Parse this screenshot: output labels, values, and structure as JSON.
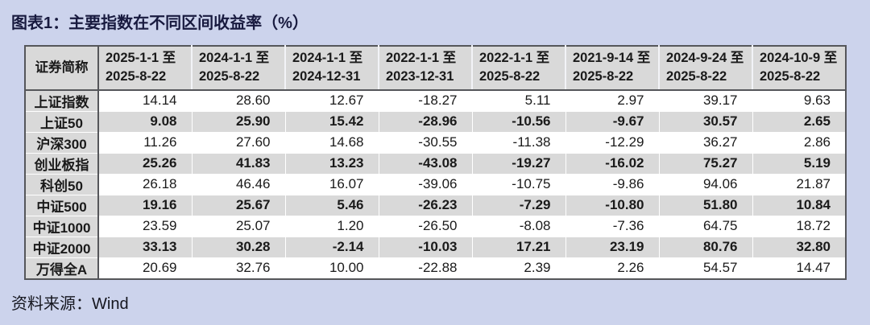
{
  "figure": {
    "title": "图表1：主要指数在不同区间收益率（%）",
    "source": "资料来源：Wind"
  },
  "colors": {
    "page_background": "#ccd3ec",
    "table_header_fill": "#d9d9d9",
    "row_even_fill": "#ffffff",
    "row_odd_fill": "#d9d9d9",
    "table_border": "#55565a",
    "title_color": "#181a3f",
    "text_color": "#1a1a1a"
  },
  "chart_data": {
    "type": "table",
    "title": "图表1：主要指数在不同区间收益率（%）",
    "unit": "%",
    "source": "资料来源：Wind",
    "corner_header": "证券简称",
    "column_headers": [
      "2025-1-1 至\n2025-8-22",
      "2024-1-1 至\n2025-8-22",
      "2024-1-1 至\n2024-12-31",
      "2022-1-1 至\n2023-12-31",
      "2022-1-1 至\n2025-8-22",
      "2021-9-14 至\n2025-8-22",
      "2024-9-24 至\n2025-8-22",
      "2024-10-9 至\n2025-8-22"
    ],
    "rows": [
      {
        "name": "上证指数",
        "values": [
          "14.14",
          "28.60",
          "12.67",
          "-18.27",
          "5.11",
          "2.97",
          "39.17",
          "9.63"
        ]
      },
      {
        "name": "上证50",
        "values": [
          "9.08",
          "25.90",
          "15.42",
          "-28.96",
          "-10.56",
          "-9.67",
          "30.57",
          "2.65"
        ]
      },
      {
        "name": "沪深300",
        "values": [
          "11.26",
          "27.60",
          "14.68",
          "-30.55",
          "-11.38",
          "-12.29",
          "36.27",
          "2.86"
        ]
      },
      {
        "name": "创业板指",
        "values": [
          "25.26",
          "41.83",
          "13.23",
          "-43.08",
          "-19.27",
          "-16.02",
          "75.27",
          "5.19"
        ]
      },
      {
        "name": "科创50",
        "values": [
          "26.18",
          "46.46",
          "16.07",
          "-39.06",
          "-10.75",
          "-9.86",
          "94.06",
          "21.87"
        ]
      },
      {
        "name": "中证500",
        "values": [
          "19.16",
          "25.67",
          "5.46",
          "-26.23",
          "-7.29",
          "-10.80",
          "51.80",
          "10.84"
        ]
      },
      {
        "name": "中证1000",
        "values": [
          "23.59",
          "25.07",
          "1.20",
          "-26.50",
          "-8.08",
          "-7.36",
          "64.75",
          "18.72"
        ]
      },
      {
        "name": "中证2000",
        "values": [
          "33.13",
          "30.28",
          "-2.14",
          "-10.03",
          "17.21",
          "23.19",
          "80.76",
          "32.80"
        ]
      },
      {
        "name": "万得全A",
        "values": [
          "20.69",
          "32.76",
          "10.00",
          "-22.88",
          "2.39",
          "2.26",
          "54.57",
          "14.47"
        ]
      }
    ]
  }
}
